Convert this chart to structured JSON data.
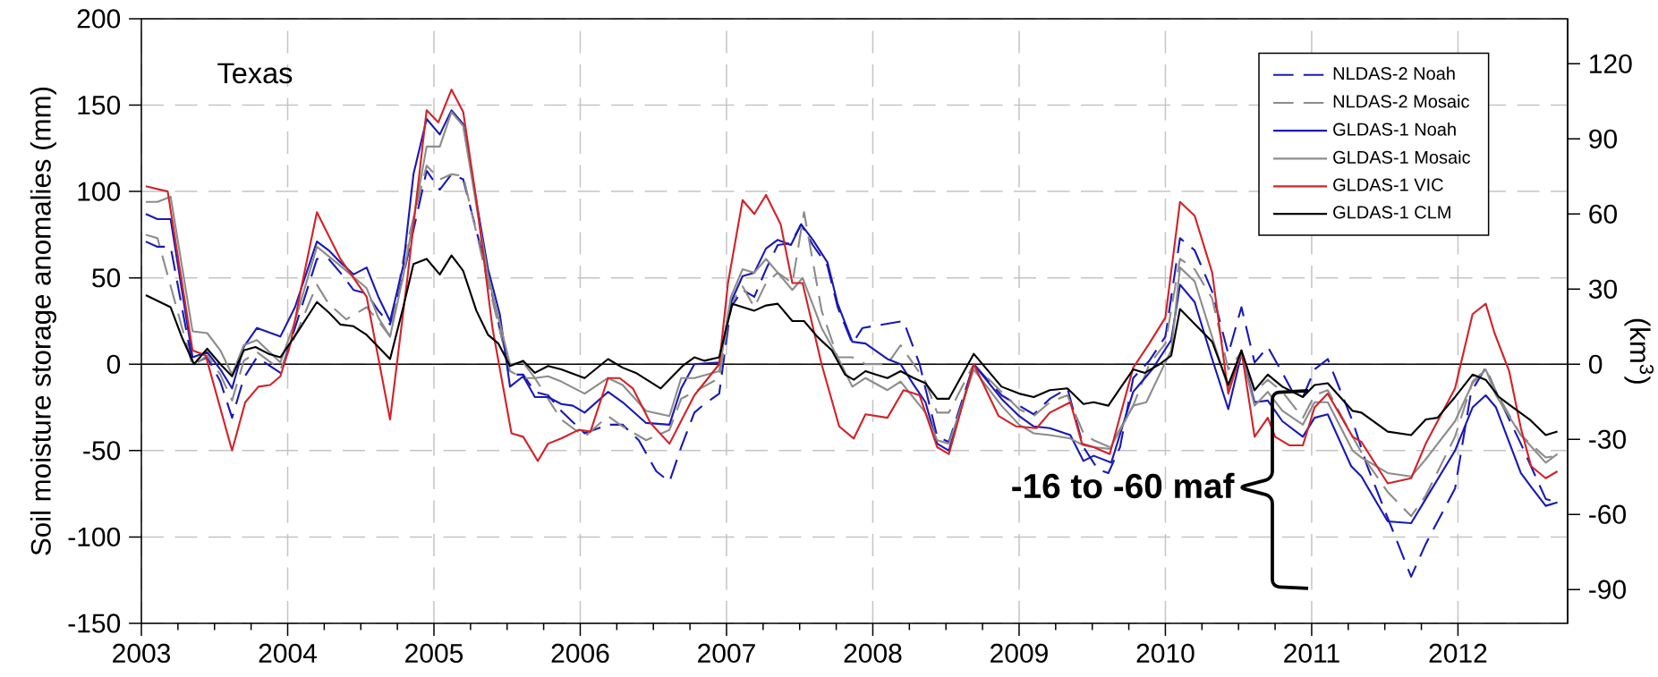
{
  "chart_data": {
    "type": "line",
    "ylabel": "Soil moisture storage anomalies (mm)",
    "y2label": "(km$^{3}$)",
    "xlim": [
      2003,
      2012.75
    ],
    "xticks": [
      2003,
      2004,
      2005,
      2006,
      2007,
      2008,
      2009,
      2010,
      2011,
      2012
    ],
    "ylim": [
      -150,
      200
    ],
    "yticks": [
      -150,
      -100,
      -50,
      0,
      50,
      100,
      150,
      200
    ],
    "y2lim": [
      -103.5,
      138
    ],
    "y2ticks": [
      -90,
      -60,
      -30,
      0,
      30,
      60,
      90,
      120
    ],
    "grid": true,
    "legend": "top right",
    "ref_lines": [
      {
        "axis": "y",
        "value": 0,
        "color": "#000000"
      }
    ],
    "annotations": [
      "Texas",
      "-16 to -60 maf"
    ],
    "series": [
      {
        "name": "NLDAS-2 Noah",
        "color": "#1a1ab4",
        "line_style": "dashed",
        "x": [
          2003.03,
          2003.11,
          2003.2,
          2003.35,
          2003.45,
          2003.54,
          2003.62,
          2003.7,
          2003.79,
          2003.95,
          2004.05,
          2004.2,
          2004.28,
          2004.36,
          2004.45,
          2004.54,
          2004.62,
          2004.7,
          2004.79,
          2004.95,
          2005.04,
          2005.12,
          2005.2,
          2005.37,
          2005.52,
          2005.61,
          2005.69,
          2005.78,
          2005.87,
          2006.03,
          2006.19,
          2006.29,
          2006.4,
          2006.52,
          2006.61,
          2006.69,
          2006.78,
          2006.85,
          2006.95,
          2007.03,
          2007.11,
          2007.19,
          2007.27,
          2007.35,
          2007.44,
          2007.51,
          2007.59,
          2007.69,
          2007.76,
          2007.86,
          2007.93,
          2008.21,
          2008.32,
          2008.44,
          2008.52,
          2008.69,
          2008.88,
          2009.0,
          2009.1,
          2009.21,
          2009.33,
          2009.44,
          2009.54,
          2009.61,
          2009.69,
          2009.78,
          2009.89,
          2010.0,
          2010.1,
          2010.2,
          2010.32,
          2010.43,
          2010.52,
          2010.61,
          2010.7,
          2010.8,
          2010.87,
          2010.94,
          2011.02,
          2011.11,
          2011.28,
          2011.38,
          2011.52,
          2011.68,
          2011.78,
          2011.98,
          2012.09,
          2012.19,
          2012.26,
          2012.43,
          2012.6,
          2012.68
        ],
        "values": [
          71,
          68,
          68,
          0,
          4,
          -10,
          -31,
          -8,
          4,
          -5,
          21,
          61,
          61,
          53,
          43,
          41,
          31,
          23,
          51,
          112,
          101,
          110,
          107,
          51,
          -6,
          -6,
          -16,
          -18,
          -27,
          -40,
          -35,
          -35,
          -44,
          -62,
          -68,
          -48,
          -28,
          -23,
          -17,
          33,
          43,
          39,
          55,
          69,
          70,
          81,
          69,
          57,
          33,
          12,
          21,
          25,
          0,
          -42,
          -45,
          0,
          -18,
          -24,
          -29,
          -20,
          -14,
          -48,
          -61,
          -63,
          -48,
          -8,
          2,
          16,
          73,
          66,
          42,
          6,
          33,
          1,
          10,
          -5,
          -16,
          -19,
          -3,
          3,
          -33,
          -59,
          -89,
          -123,
          -104,
          -72,
          -16,
          -2,
          -16,
          -46,
          -78,
          -80
        ]
      },
      {
        "name": "NLDAS-2 Mosaic",
        "color": "#8c8c8c",
        "line_style": "dashed",
        "x": [
          2003.03,
          2003.11,
          2003.35,
          2003.45,
          2003.54,
          2003.62,
          2003.7,
          2003.79,
          2003.95,
          2004.05,
          2004.2,
          2004.28,
          2004.4,
          2004.54,
          2004.62,
          2004.7,
          2004.79,
          2004.95,
          2005.04,
          2005.12,
          2005.2,
          2005.37,
          2005.52,
          2005.61,
          2005.69,
          2005.78,
          2005.87,
          2006.03,
          2006.19,
          2006.29,
          2006.45,
          2006.61,
          2006.69,
          2006.78,
          2006.95,
          2007.03,
          2007.11,
          2007.19,
          2007.27,
          2007.35,
          2007.45,
          2007.53,
          2007.65,
          2007.76,
          2007.86,
          2007.95,
          2008.1,
          2008.19,
          2008.36,
          2008.44,
          2008.52,
          2008.69,
          2008.88,
          2009.0,
          2009.1,
          2009.21,
          2009.33,
          2009.44,
          2009.51,
          2009.62,
          2009.78,
          2009.89,
          2010.0,
          2010.1,
          2010.2,
          2010.32,
          2010.43,
          2010.52,
          2010.61,
          2010.7,
          2010.8,
          2010.94,
          2011.02,
          2011.11,
          2011.28,
          2011.38,
          2011.52,
          2011.68,
          2011.78,
          2011.98,
          2012.1,
          2012.19,
          2012.26,
          2012.43,
          2012.6,
          2012.68
        ],
        "values": [
          75,
          73,
          -1,
          5,
          -6,
          -21,
          2,
          7,
          -3,
          16,
          46,
          35,
          26,
          33,
          25,
          16,
          61,
          115,
          107,
          110,
          109,
          47,
          -4,
          -8,
          -8,
          -20,
          -32,
          -42,
          -30,
          -36,
          -44,
          -38,
          -20,
          -16,
          -8,
          35,
          45,
          33,
          47,
          53,
          47,
          88,
          31,
          4,
          4,
          0,
          0,
          11,
          -10,
          -28,
          -28,
          0,
          -16,
          -26,
          -30,
          -22,
          -18,
          -40,
          -44,
          -48,
          -24,
          0,
          12,
          61,
          55,
          38,
          -3,
          7,
          -16,
          -9,
          -16,
          -31,
          -18,
          -15,
          -42,
          -57,
          -74,
          -88,
          -76,
          -42,
          -10,
          -3,
          -16,
          -41,
          -54,
          -53
        ]
      },
      {
        "name": "GLDAS-1 Noah",
        "color": "#1a1ab4",
        "line_style": "solid",
        "x": [
          2003.03,
          2003.11,
          2003.2,
          2003.35,
          2003.45,
          2003.54,
          2003.62,
          2003.7,
          2003.79,
          2003.95,
          2004.05,
          2004.2,
          2004.28,
          2004.36,
          2004.45,
          2004.54,
          2004.62,
          2004.7,
          2004.79,
          2004.86,
          2004.95,
          2005.04,
          2005.12,
          2005.2,
          2005.37,
          2005.45,
          2005.52,
          2005.61,
          2005.69,
          2005.78,
          2005.87,
          2005.95,
          2006.03,
          2006.19,
          2006.29,
          2006.45,
          2006.61,
          2006.69,
          2006.78,
          2006.95,
          2007.03,
          2007.11,
          2007.19,
          2007.27,
          2007.35,
          2007.44,
          2007.51,
          2007.59,
          2007.69,
          2007.76,
          2007.86,
          2007.95,
          2008.1,
          2008.19,
          2008.28,
          2008.36,
          2008.44,
          2008.52,
          2008.69,
          2008.88,
          2009.0,
          2009.1,
          2009.21,
          2009.35,
          2009.44,
          2009.51,
          2009.63,
          2009.78,
          2009.91,
          2010.04,
          2010.1,
          2010.2,
          2010.32,
          2010.43,
          2010.52,
          2010.61,
          2010.7,
          2010.8,
          2010.94,
          2011.02,
          2011.11,
          2011.27,
          2011.34,
          2011.52,
          2011.68,
          2011.78,
          2011.98,
          2012.1,
          2012.19,
          2012.26,
          2012.43,
          2012.5,
          2012.6,
          2012.68
        ],
        "values": [
          87,
          84,
          84,
          4,
          7,
          -3,
          -14,
          10,
          21,
          16,
          33,
          71,
          66,
          59,
          52,
          56,
          39,
          25,
          57,
          110,
          142,
          133,
          147,
          139,
          55,
          29,
          -13,
          -7,
          -19,
          -19,
          -23,
          -24,
          -28,
          -16,
          -22,
          -34,
          -35,
          -14,
          0,
          1,
          36,
          51,
          53,
          67,
          72,
          69,
          81,
          72,
          59,
          35,
          13,
          12,
          3,
          0,
          -12,
          -22,
          -46,
          -50,
          0,
          -20,
          -30,
          -36,
          -37,
          -41,
          -56,
          -53,
          -57,
          -16,
          -3,
          14,
          46,
          36,
          3,
          -26,
          6,
          -22,
          -21,
          -33,
          -42,
          -31,
          -29,
          -59,
          -65,
          -91,
          -92,
          -78,
          -50,
          -25,
          -18,
          -25,
          -63,
          -71,
          -82,
          -80
        ]
      },
      {
        "name": "GLDAS-1 Mosaic",
        "color": "#8c8c8c",
        "line_style": "solid",
        "x": [
          2003.03,
          2003.11,
          2003.2,
          2003.35,
          2003.45,
          2003.54,
          2003.62,
          2003.7,
          2003.79,
          2003.95,
          2004.05,
          2004.2,
          2004.36,
          2004.54,
          2004.62,
          2004.7,
          2004.79,
          2004.95,
          2005.04,
          2005.12,
          2005.2,
          2005.37,
          2005.52,
          2005.61,
          2005.69,
          2005.78,
          2005.87,
          2006.03,
          2006.19,
          2006.29,
          2006.45,
          2006.61,
          2006.69,
          2006.78,
          2006.95,
          2007.03,
          2007.11,
          2007.19,
          2007.27,
          2007.35,
          2007.45,
          2007.52,
          2007.65,
          2007.76,
          2007.86,
          2007.95,
          2008.1,
          2008.19,
          2008.36,
          2008.44,
          2008.52,
          2008.69,
          2008.88,
          2009.0,
          2009.1,
          2009.21,
          2009.35,
          2009.44,
          2009.51,
          2009.62,
          2009.78,
          2009.87,
          2009.96,
          2010.04,
          2010.1,
          2010.2,
          2010.43,
          2010.52,
          2010.61,
          2010.7,
          2010.8,
          2010.94,
          2011.02,
          2011.11,
          2011.28,
          2011.34,
          2011.52,
          2011.68,
          2011.78,
          2011.98,
          2012.1,
          2012.19,
          2012.26,
          2012.43,
          2012.6,
          2012.68
        ],
        "values": [
          94,
          94,
          97,
          19,
          18,
          8,
          -6,
          11,
          14,
          1,
          25,
          68,
          57,
          44,
          27,
          16,
          51,
          126,
          126,
          146,
          138,
          51,
          0,
          1,
          -8,
          -7,
          -10,
          -17,
          -8,
          -12,
          -27,
          -30,
          -8,
          -8,
          -4,
          39,
          55,
          53,
          61,
          53,
          43,
          50,
          21,
          4,
          -13,
          -8,
          -15,
          -10,
          -28,
          -44,
          -46,
          -3,
          -24,
          -35,
          -40,
          -41,
          -43,
          -47,
          -48,
          -49,
          -24,
          -22,
          -6,
          8,
          56,
          48,
          -14,
          6,
          -24,
          -16,
          -27,
          -35,
          -22,
          -22,
          -50,
          -54,
          -63,
          -65,
          -55,
          -33,
          -11,
          -3,
          -18,
          -41,
          -57,
          -52
        ]
      },
      {
        "name": "GLDAS-1 VIC",
        "color": "#d2232a",
        "line_style": "solid",
        "x": [
          2003.03,
          2003.18,
          2003.35,
          2003.44,
          2003.62,
          2003.71,
          2003.8,
          2003.88,
          2003.95,
          2004.02,
          2004.09,
          2004.2,
          2004.36,
          2004.54,
          2004.7,
          2004.82,
          2004.95,
          2005.03,
          2005.12,
          2005.2,
          2005.29,
          2005.4,
          2005.53,
          2005.61,
          2005.71,
          2005.78,
          2005.87,
          2005.99,
          2006.07,
          2006.19,
          2006.27,
          2006.36,
          2006.48,
          2006.61,
          2006.78,
          2006.95,
          2007.01,
          2007.11,
          2007.19,
          2007.27,
          2007.37,
          2007.45,
          2007.52,
          2007.65,
          2007.77,
          2007.87,
          2007.95,
          2008.1,
          2008.21,
          2008.32,
          2008.44,
          2008.52,
          2008.69,
          2008.86,
          2008.98,
          2009.12,
          2009.21,
          2009.35,
          2009.43,
          2009.51,
          2009.62,
          2009.78,
          2009.89,
          2010.0,
          2010.1,
          2010.2,
          2010.32,
          2010.43,
          2010.52,
          2010.61,
          2010.7,
          2010.75,
          2010.85,
          2010.94,
          2011.02,
          2011.11,
          2011.28,
          2011.34,
          2011.52,
          2011.68,
          2011.78,
          2011.98,
          2012.1,
          2012.19,
          2012.25,
          2012.35,
          2012.43,
          2012.5,
          2012.6,
          2012.68
        ],
        "values": [
          103,
          100,
          8,
          5,
          -50,
          -22,
          -13,
          -12,
          -7,
          12,
          43,
          88,
          61,
          39,
          -32,
          51,
          147,
          140,
          159,
          146,
          95,
          21,
          -40,
          -42,
          -56,
          -46,
          -43,
          -38,
          -39,
          -8,
          -8,
          -14,
          -34,
          -46,
          -18,
          0,
          47,
          95,
          87,
          98,
          81,
          47,
          47,
          0,
          -36,
          -43,
          -29,
          -31,
          -15,
          -18,
          -48,
          -52,
          0,
          -30,
          -36,
          -37,
          -28,
          -22,
          -46,
          -48,
          -52,
          -2,
          12,
          27,
          94,
          86,
          53,
          -17,
          8,
          -42,
          -31,
          -42,
          -47,
          -47,
          -25,
          -17,
          -42,
          -45,
          -69,
          -66,
          -46,
          -14,
          29,
          35,
          18,
          -4,
          -37,
          -59,
          -66,
          -62
        ]
      },
      {
        "name": "GLDAS-1 CLM",
        "color": "#000000",
        "line_style": "solid",
        "x": [
          2003.03,
          2003.2,
          2003.28,
          2003.36,
          2003.45,
          2003.54,
          2003.62,
          2003.7,
          2003.78,
          2003.87,
          2003.95,
          2004.07,
          2004.2,
          2004.28,
          2004.36,
          2004.45,
          2004.54,
          2004.62,
          2004.7,
          2004.79,
          2004.86,
          2004.95,
          2005.04,
          2005.12,
          2005.2,
          2005.29,
          2005.37,
          2005.44,
          2005.52,
          2005.61,
          2005.69,
          2005.78,
          2005.87,
          2006.03,
          2006.19,
          2006.29,
          2006.38,
          2006.55,
          2006.7,
          2006.78,
          2006.85,
          2006.95,
          2007.04,
          2007.19,
          2007.27,
          2007.35,
          2007.45,
          2007.53,
          2007.62,
          2007.72,
          2007.81,
          2007.87,
          2007.95,
          2008.02,
          2008.1,
          2008.19,
          2008.28,
          2008.36,
          2008.44,
          2008.52,
          2008.69,
          2008.88,
          2009.0,
          2009.1,
          2009.21,
          2009.33,
          2009.44,
          2009.51,
          2009.61,
          2009.69,
          2009.78,
          2009.86,
          2009.96,
          2010.04,
          2010.1,
          2010.32,
          2010.43,
          2010.52,
          2010.61,
          2010.7,
          2010.8,
          2010.94,
          2011.02,
          2011.11,
          2011.28,
          2011.34,
          2011.52,
          2011.68,
          2011.78,
          2011.86,
          2011.98,
          2012.1,
          2012.19,
          2012.28,
          2012.36,
          2012.49,
          2012.6,
          2012.68
        ],
        "values": [
          40,
          33,
          15,
          0,
          9,
          0,
          -7,
          8,
          10,
          6,
          4,
          19,
          36,
          30,
          23,
          22,
          17,
          10,
          3,
          33,
          58,
          61,
          52,
          63,
          54,
          31,
          17,
          12,
          -1,
          2,
          -5,
          -1,
          -3,
          -8,
          3,
          -2,
          -5,
          -14,
          -1,
          4,
          2,
          4,
          35,
          31,
          34,
          35,
          25,
          25,
          16,
          8,
          -6,
          -9,
          -4,
          -6,
          -8,
          -4,
          -8,
          -11,
          -20,
          -20,
          6,
          -13,
          -17,
          -19,
          -15,
          -14,
          -23,
          -22,
          -24,
          -14,
          -3,
          -5,
          0,
          5,
          32,
          13,
          -12,
          8,
          -15,
          -6,
          -13,
          -19,
          -12,
          -11,
          -27,
          -28,
          -39,
          -41,
          -32,
          -31,
          -19,
          -6,
          -9,
          -19,
          -24,
          -32,
          -41,
          -39
        ]
      }
    ]
  }
}
